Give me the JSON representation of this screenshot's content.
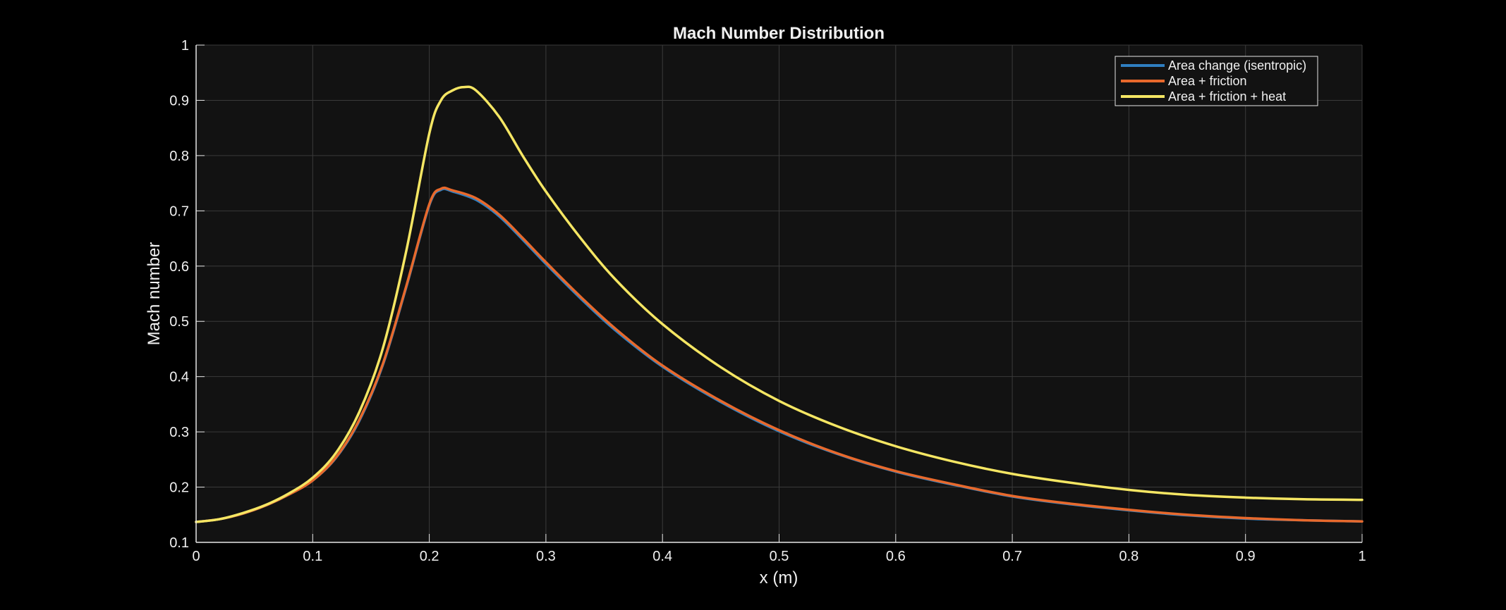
{
  "chart_data": {
    "type": "line",
    "title": "Mach Number Distribution",
    "xlabel": "x (m)",
    "ylabel": "Mach number",
    "xlim": [
      0,
      1
    ],
    "ylim": [
      0.1,
      1
    ],
    "x_ticks": [
      0,
      0.1,
      0.2,
      0.3,
      0.4,
      0.5,
      0.6,
      0.7,
      0.8,
      0.9,
      1
    ],
    "y_ticks": [
      0.1,
      0.2,
      0.3,
      0.4,
      0.5,
      0.6,
      0.7,
      0.8,
      0.9,
      1
    ],
    "grid": true,
    "legend_position": "top-right",
    "colors": {
      "background": "#000000",
      "plot_area": "#121212",
      "grid": "#3a3a3a",
      "axis": "#e6e6e6",
      "text": "#f0f0f0"
    },
    "series": [
      {
        "name": "Area change (isentropic)",
        "color": "#2f7fc1",
        "x": [
          0,
          0.02,
          0.04,
          0.06,
          0.08,
          0.1,
          0.12,
          0.14,
          0.16,
          0.18,
          0.2,
          0.21,
          0.22,
          0.24,
          0.26,
          0.28,
          0.3,
          0.33,
          0.36,
          0.4,
          0.45,
          0.5,
          0.55,
          0.6,
          0.65,
          0.7,
          0.75,
          0.8,
          0.85,
          0.9,
          0.95,
          1.0
        ],
        "values": [
          0.137,
          0.142,
          0.152,
          0.167,
          0.187,
          0.212,
          0.253,
          0.32,
          0.42,
          0.56,
          0.71,
          0.738,
          0.735,
          0.72,
          0.69,
          0.648,
          0.604,
          0.541,
          0.483,
          0.418,
          0.354,
          0.301,
          0.26,
          0.228,
          0.204,
          0.183,
          0.169,
          0.158,
          0.149,
          0.143,
          0.14,
          0.138
        ]
      },
      {
        "name": "Area + friction",
        "color": "#e8692c",
        "x": [
          0,
          0.02,
          0.04,
          0.06,
          0.08,
          0.1,
          0.12,
          0.14,
          0.16,
          0.18,
          0.2,
          0.21,
          0.22,
          0.24,
          0.26,
          0.28,
          0.3,
          0.33,
          0.36,
          0.4,
          0.45,
          0.5,
          0.55,
          0.6,
          0.65,
          0.7,
          0.75,
          0.8,
          0.85,
          0.9,
          0.95,
          1.0
        ],
        "values": [
          0.137,
          0.142,
          0.152,
          0.167,
          0.187,
          0.212,
          0.254,
          0.322,
          0.422,
          0.562,
          0.712,
          0.74,
          0.737,
          0.723,
          0.693,
          0.651,
          0.607,
          0.544,
          0.486,
          0.42,
          0.356,
          0.303,
          0.261,
          0.229,
          0.205,
          0.184,
          0.17,
          0.159,
          0.15,
          0.144,
          0.14,
          0.138
        ]
      },
      {
        "name": "Area + friction + heat",
        "color": "#f5e663",
        "x": [
          0,
          0.02,
          0.04,
          0.06,
          0.08,
          0.1,
          0.12,
          0.14,
          0.16,
          0.18,
          0.2,
          0.21,
          0.22,
          0.23,
          0.24,
          0.26,
          0.28,
          0.3,
          0.33,
          0.36,
          0.4,
          0.45,
          0.5,
          0.55,
          0.6,
          0.65,
          0.7,
          0.75,
          0.8,
          0.85,
          0.9,
          0.95,
          1.0
        ],
        "values": [
          0.137,
          0.142,
          0.153,
          0.168,
          0.189,
          0.217,
          0.262,
          0.336,
          0.45,
          0.625,
          0.84,
          0.9,
          0.918,
          0.924,
          0.918,
          0.87,
          0.8,
          0.735,
          0.65,
          0.575,
          0.495,
          0.417,
          0.356,
          0.31,
          0.274,
          0.246,
          0.224,
          0.208,
          0.195,
          0.186,
          0.181,
          0.178,
          0.177
        ]
      }
    ]
  }
}
